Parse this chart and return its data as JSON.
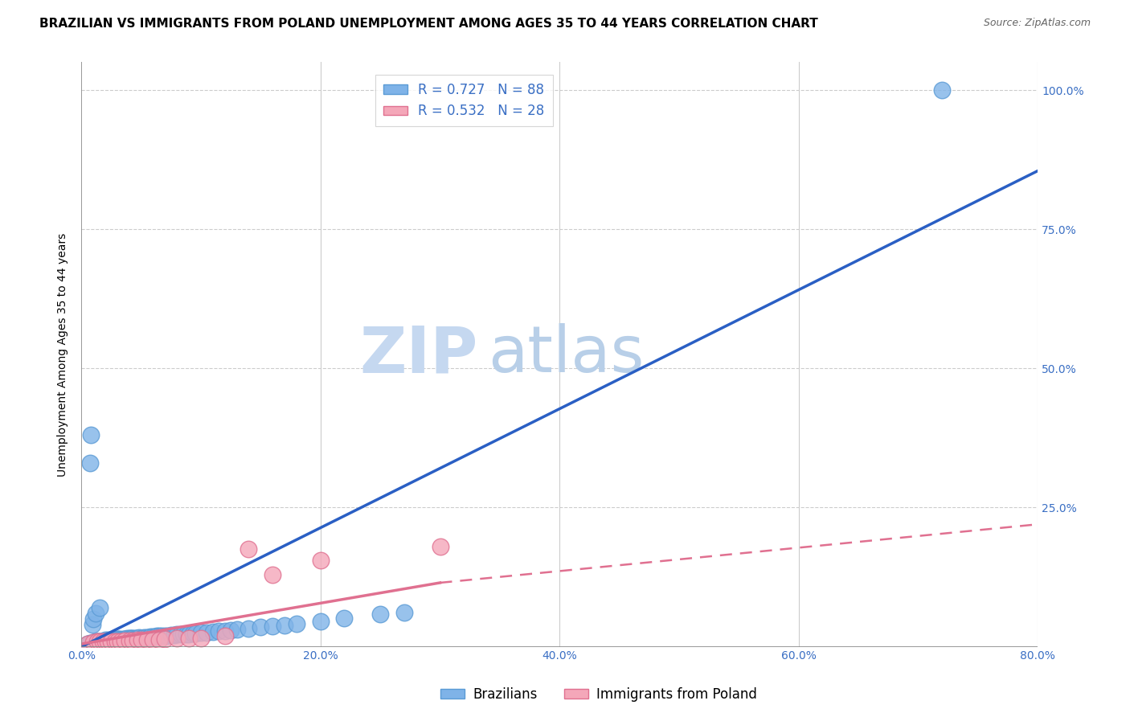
{
  "title": "BRAZILIAN VS IMMIGRANTS FROM POLAND UNEMPLOYMENT AMONG AGES 35 TO 44 YEARS CORRELATION CHART",
  "source": "Source: ZipAtlas.com",
  "ylabel": "Unemployment Among Ages 35 to 44 years",
  "series1_label": "Brazilians",
  "series2_label": "Immigrants from Poland",
  "series1_color": "#7fb3e8",
  "series2_color": "#f4a7b9",
  "series1_edge_color": "#5b9bd5",
  "series2_edge_color": "#e07090",
  "series1_R": 0.727,
  "series1_N": 88,
  "series2_R": 0.532,
  "series2_N": 28,
  "line1_color": "#2a5fc4",
  "line2_color": "#e07090",
  "watermark_zip": "ZIP",
  "watermark_atlas": "atlas",
  "watermark_color_zip": "#c5d8f0",
  "watermark_color_atlas": "#b8cfe8",
  "xlim": [
    0.0,
    0.8
  ],
  "ylim": [
    0.0,
    1.05
  ],
  "xticks": [
    0.0,
    0.2,
    0.4,
    0.6,
    0.8
  ],
  "xtick_labels": [
    "0.0%",
    "20.0%",
    "40.0%",
    "60.0%",
    "80.0%"
  ],
  "yticks": [
    0.0,
    0.25,
    0.5,
    0.75,
    1.0
  ],
  "ytick_labels": [
    "0.0%",
    "25.0%",
    "50.0%",
    "75.0%",
    "100.0%"
  ],
  "brazil_x": [
    0.005,
    0.007,
    0.01,
    0.012,
    0.013,
    0.014,
    0.015,
    0.016,
    0.017,
    0.018,
    0.018,
    0.019,
    0.02,
    0.02,
    0.021,
    0.022,
    0.022,
    0.023,
    0.024,
    0.025,
    0.025,
    0.026,
    0.027,
    0.028,
    0.029,
    0.03,
    0.03,
    0.031,
    0.032,
    0.033,
    0.034,
    0.035,
    0.036,
    0.037,
    0.038,
    0.04,
    0.041,
    0.042,
    0.043,
    0.045,
    0.046,
    0.047,
    0.048,
    0.05,
    0.051,
    0.052,
    0.054,
    0.056,
    0.058,
    0.06,
    0.062,
    0.063,
    0.065,
    0.067,
    0.07,
    0.072,
    0.075,
    0.078,
    0.08,
    0.083,
    0.085,
    0.088,
    0.09,
    0.093,
    0.095,
    0.1,
    0.105,
    0.11,
    0.115,
    0.12,
    0.125,
    0.13,
    0.14,
    0.15,
    0.16,
    0.17,
    0.18,
    0.2,
    0.22,
    0.25,
    0.007,
    0.008,
    0.009,
    0.01,
    0.012,
    0.015,
    0.27,
    0.72
  ],
  "brazil_y": [
    0.005,
    0.006,
    0.008,
    0.009,
    0.01,
    0.01,
    0.01,
    0.01,
    0.01,
    0.01,
    0.01,
    0.01,
    0.01,
    0.012,
    0.01,
    0.01,
    0.012,
    0.01,
    0.012,
    0.01,
    0.012,
    0.012,
    0.013,
    0.013,
    0.012,
    0.012,
    0.014,
    0.014,
    0.014,
    0.013,
    0.013,
    0.014,
    0.014,
    0.014,
    0.015,
    0.015,
    0.015,
    0.016,
    0.016,
    0.015,
    0.016,
    0.016,
    0.017,
    0.016,
    0.016,
    0.017,
    0.017,
    0.017,
    0.018,
    0.018,
    0.018,
    0.019,
    0.019,
    0.02,
    0.02,
    0.02,
    0.021,
    0.021,
    0.022,
    0.022,
    0.022,
    0.023,
    0.023,
    0.024,
    0.024,
    0.025,
    0.026,
    0.027,
    0.028,
    0.029,
    0.03,
    0.031,
    0.033,
    0.035,
    0.037,
    0.039,
    0.041,
    0.046,
    0.051,
    0.058,
    0.33,
    0.38,
    0.04,
    0.05,
    0.06,
    0.07,
    0.062,
    1.0
  ],
  "poland_x": [
    0.005,
    0.01,
    0.013,
    0.015,
    0.018,
    0.02,
    0.022,
    0.025,
    0.028,
    0.03,
    0.033,
    0.036,
    0.04,
    0.043,
    0.047,
    0.05,
    0.055,
    0.06,
    0.065,
    0.07,
    0.08,
    0.09,
    0.1,
    0.12,
    0.14,
    0.16,
    0.2,
    0.3
  ],
  "poland_y": [
    0.005,
    0.008,
    0.009,
    0.009,
    0.009,
    0.009,
    0.01,
    0.01,
    0.01,
    0.01,
    0.01,
    0.011,
    0.011,
    0.011,
    0.012,
    0.012,
    0.012,
    0.013,
    0.013,
    0.014,
    0.015,
    0.015,
    0.016,
    0.019,
    0.175,
    0.13,
    0.155,
    0.18
  ],
  "line1_x0": 0.0,
  "line1_y0": 0.0,
  "line1_x1": 0.8,
  "line1_y1": 0.855,
  "line2_solid_x0": 0.0,
  "line2_solid_y0": 0.005,
  "line2_solid_x1": 0.3,
  "line2_solid_y1": 0.115,
  "line2_dash_x0": 0.3,
  "line2_dash_y0": 0.115,
  "line2_dash_x1": 0.8,
  "line2_dash_y1": 0.22,
  "title_fontsize": 11,
  "axis_label_fontsize": 10,
  "tick_fontsize": 10,
  "legend_fontsize": 12,
  "tick_color": "#3a6fc4",
  "source_color": "#666666",
  "grid_color": "#cccccc",
  "spine_color": "#888888"
}
